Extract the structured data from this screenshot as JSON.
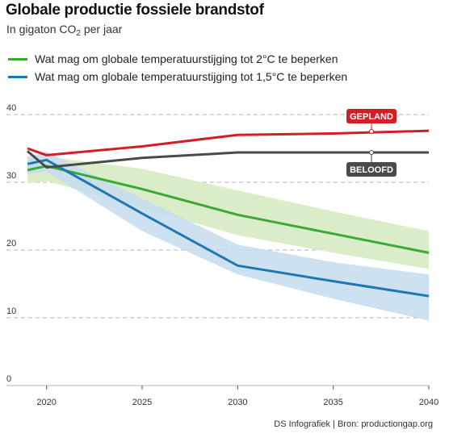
{
  "title_parts": {
    "main": "Globale productie fossiele brandstof",
    "subtitle_pre": "In gigaton CO",
    "subtitle_sub": "2",
    "subtitle_post": " per jaar"
  },
  "source": "DS Infografiek | Bron: productiongap.org",
  "colors": {
    "red": "#d21f26",
    "dark": "#4a4a4a",
    "green": "#3aaa35",
    "green_band": "#dbecc9",
    "blue": "#1f78b4",
    "blue_band": "#c4dcee",
    "grid": "#b5b5b5"
  },
  "chart_data": {
    "type": "line",
    "title": "Globale productie fossiele brandstof",
    "subtitle": "In gigaton CO2 per jaar",
    "xlabel": "",
    "ylabel": "",
    "xlim": [
      2019,
      2040
    ],
    "ylim": [
      0,
      40
    ],
    "x_ticks": [
      2020,
      2025,
      2030,
      2035,
      2040
    ],
    "y_ticks": [
      0,
      10,
      20,
      30,
      40
    ],
    "grid": "horizontal dashed",
    "legend_position": "top-left",
    "legend": [
      "Wat mag om globale temperatuurstijging tot 2°C te beperken",
      "Wat mag om globale temperatuurstijging tot 1,5°C te beperken"
    ],
    "series": [
      {
        "name": "GEPLAND",
        "color": "#d21f26",
        "points": [
          [
            2019,
            35.0
          ],
          [
            2020,
            34.0
          ],
          [
            2025,
            35.3
          ],
          [
            2030,
            37.0
          ],
          [
            2035,
            37.2
          ],
          [
            2040,
            37.6
          ]
        ]
      },
      {
        "name": "BELOOFD",
        "color": "#4a4a4a",
        "points": [
          [
            2019,
            34.6
          ],
          [
            2020,
            32.2
          ],
          [
            2025,
            33.6
          ],
          [
            2030,
            34.4
          ],
          [
            2035,
            34.4
          ],
          [
            2040,
            34.4
          ]
        ]
      },
      {
        "name": "Wat mag om globale temperatuurstijging tot 2°C te beperken",
        "color": "#3aaa35",
        "points": [
          [
            2019,
            31.8
          ],
          [
            2020,
            32.4
          ],
          [
            2025,
            29.0
          ],
          [
            2030,
            25.2
          ],
          [
            2035,
            22.4
          ],
          [
            2040,
            19.6
          ]
        ],
        "band_upper": [
          [
            2019,
            33.5
          ],
          [
            2020,
            33.8
          ],
          [
            2025,
            32.0
          ],
          [
            2030,
            28.8
          ],
          [
            2035,
            25.7
          ],
          [
            2040,
            22.8
          ]
        ],
        "band_lower": [
          [
            2019,
            29.8
          ],
          [
            2020,
            30.2
          ],
          [
            2025,
            26.2
          ],
          [
            2030,
            22.2
          ],
          [
            2035,
            19.6
          ],
          [
            2040,
            17.2
          ]
        ]
      },
      {
        "name": "Wat mag om globale temperatuurstijging tot 1,5°C te beperken",
        "color": "#1f78b4",
        "points": [
          [
            2019,
            32.7
          ],
          [
            2020,
            33.3
          ],
          [
            2025,
            25.4
          ],
          [
            2030,
            17.7
          ],
          [
            2035,
            15.4
          ],
          [
            2040,
            13.2
          ]
        ],
        "band_upper": [
          [
            2019,
            33.8
          ],
          [
            2020,
            34.5
          ],
          [
            2025,
            27.6
          ],
          [
            2030,
            20.8
          ],
          [
            2035,
            18.2
          ],
          [
            2040,
            16.4
          ]
        ],
        "band_lower": [
          [
            2019,
            31.2
          ],
          [
            2020,
            31.6
          ],
          [
            2025,
            22.8
          ],
          [
            2030,
            16.4
          ],
          [
            2035,
            12.8
          ],
          [
            2040,
            9.6
          ]
        ]
      }
    ],
    "annotations": [
      {
        "text": "GEPLAND",
        "x": 2037,
        "y": 37.5,
        "style": "red-tag-above"
      },
      {
        "text": "BELOOFD",
        "x": 2037,
        "y": 34.4,
        "style": "dark-tag-below"
      }
    ]
  }
}
